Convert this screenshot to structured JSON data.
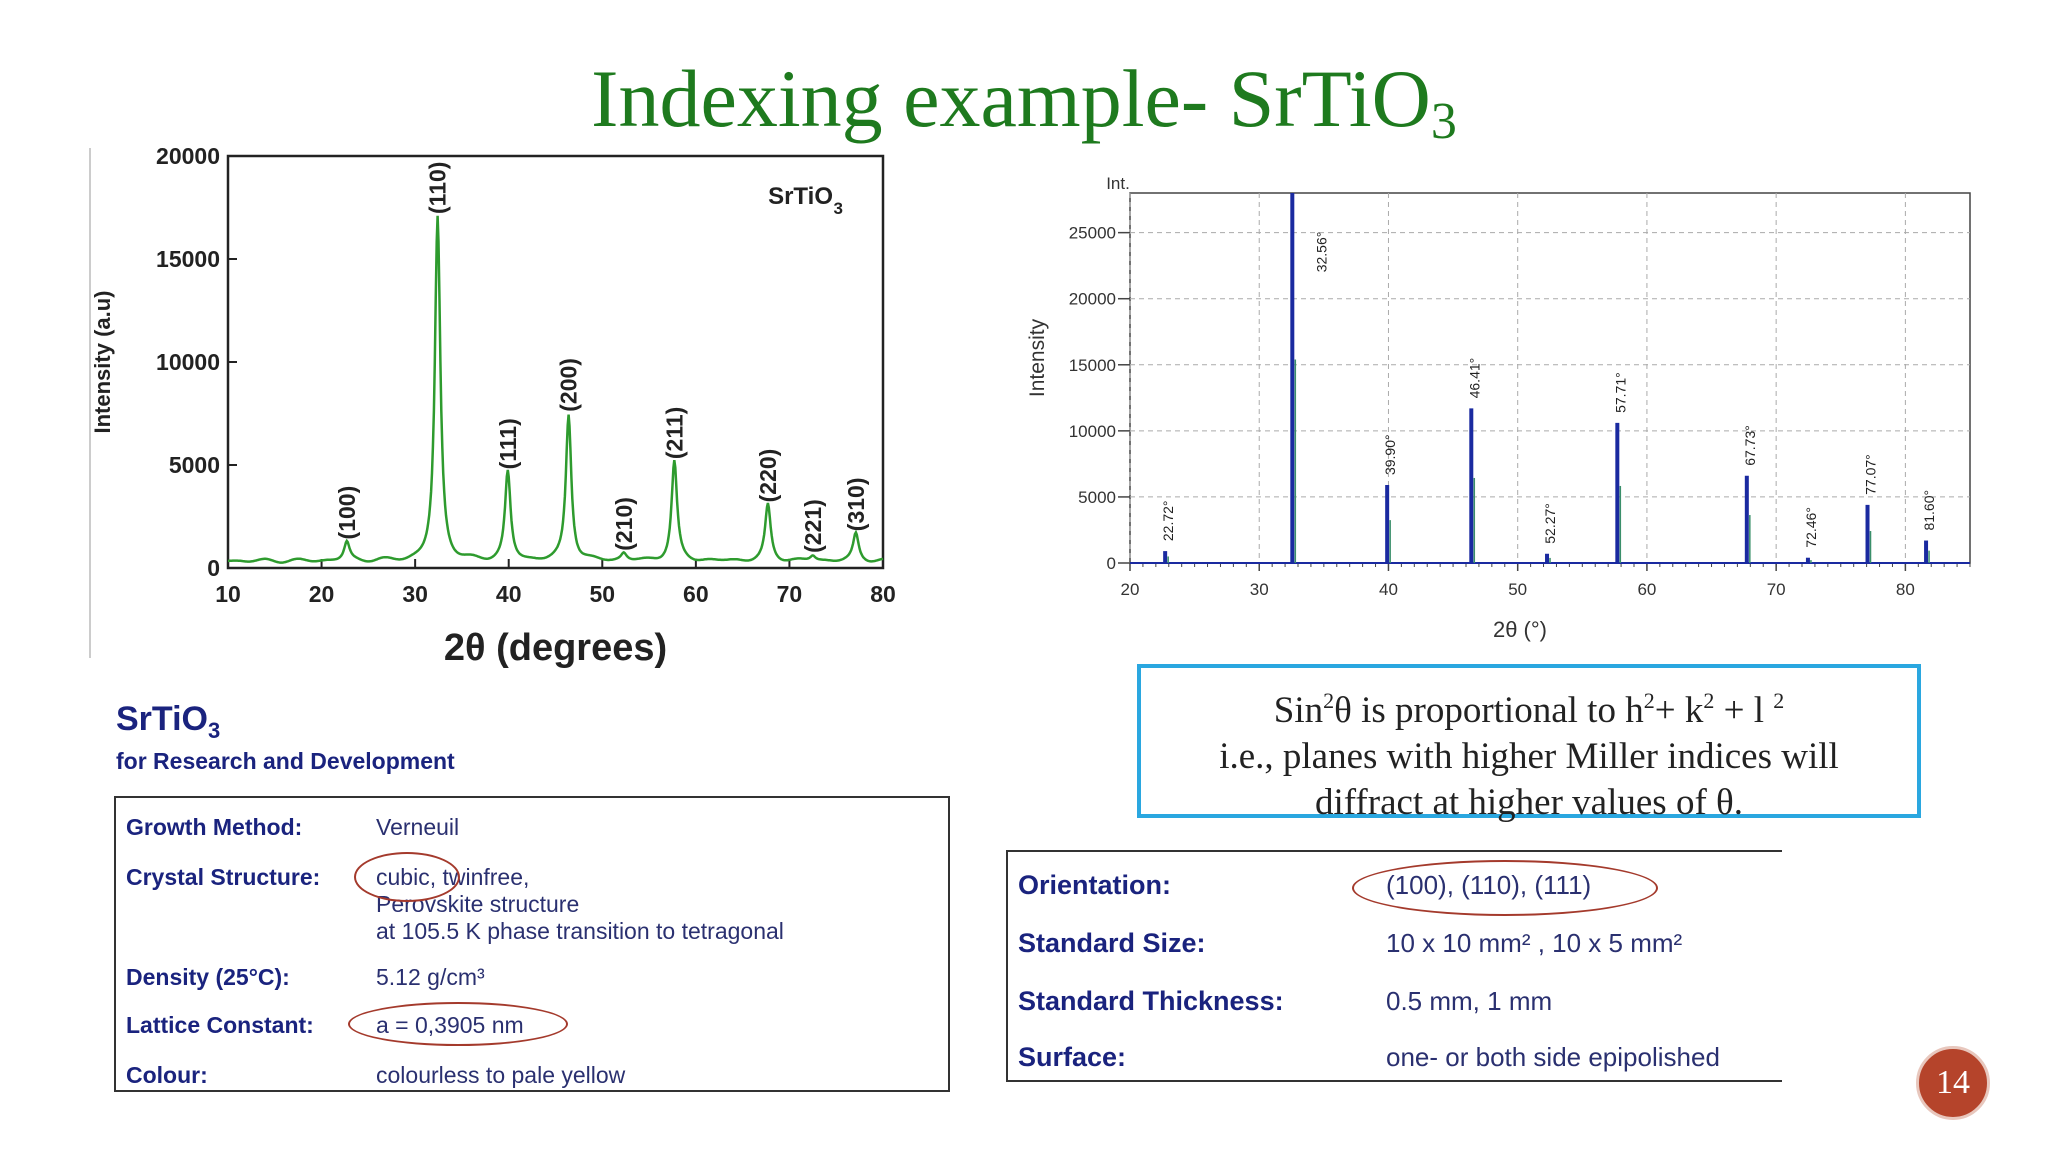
{
  "slide": {
    "title_main": "Indexing example- SrTiO",
    "title_sub": "3",
    "page_number": "14"
  },
  "chart_data": [
    {
      "type": "line",
      "title": "SrTiO",
      "title_sub": "3",
      "xlabel": "2θ (degrees)",
      "ylabel": "Intensity (a.u)",
      "xlim": [
        10,
        80
      ],
      "ylim": [
        0,
        20000
      ],
      "xticks": [
        10,
        20,
        30,
        40,
        50,
        60,
        70,
        80
      ],
      "yticks": [
        0,
        5000,
        10000,
        15000,
        20000
      ],
      "color": "#2e9b2e",
      "peaks": [
        {
          "x": 22.7,
          "y": 900,
          "label": "(100)"
        },
        {
          "x": 32.4,
          "y": 16700,
          "label": "(110)"
        },
        {
          "x": 39.9,
          "y": 4300,
          "label": "(111)"
        },
        {
          "x": 46.4,
          "y": 7100,
          "label": "(200)"
        },
        {
          "x": 52.3,
          "y": 350,
          "label": "(210)"
        },
        {
          "x": 57.7,
          "y": 4800,
          "label": "(211)"
        },
        {
          "x": 67.7,
          "y": 2700,
          "label": "(220)"
        },
        {
          "x": 72.5,
          "y": 250,
          "label": "(221)"
        },
        {
          "x": 77.1,
          "y": 1300,
          "label": "(310)"
        }
      ]
    },
    {
      "type": "bar",
      "title": "",
      "top_label": "Int.",
      "xlabel": "2θ (°)",
      "ylabel": "Intensity",
      "xlim": [
        20,
        85
      ],
      "ylim": [
        0,
        28000
      ],
      "xticks": [
        20,
        30,
        40,
        50,
        60,
        70,
        80
      ],
      "yticks": [
        0,
        5000,
        10000,
        15000,
        20000,
        25000
      ],
      "grid": true,
      "color": "#1a2aa0",
      "peaks": [
        {
          "x": 22.72,
          "y": 900,
          "label": "22.72°"
        },
        {
          "x": 32.56,
          "y": 28000,
          "label": "32.56°"
        },
        {
          "x": 39.9,
          "y": 5900,
          "label": "39.90°"
        },
        {
          "x": 46.41,
          "y": 11700,
          "label": "46.41°"
        },
        {
          "x": 52.27,
          "y": 700,
          "label": "52.27°"
        },
        {
          "x": 57.71,
          "y": 10600,
          "label": "57.71°"
        },
        {
          "x": 67.73,
          "y": 6600,
          "label": "67.73°"
        },
        {
          "x": 72.46,
          "y": 400,
          "label": "72.46°"
        },
        {
          "x": 77.07,
          "y": 4400,
          "label": "77.07°"
        },
        {
          "x": 81.6,
          "y": 1700,
          "label": "81.60°"
        }
      ]
    }
  ],
  "note": {
    "line1_a": "Sin",
    "line1_sup1": "2",
    "line1_b": "θ is proportional to h",
    "line1_sup2": "2",
    "line1_c": "+ k",
    "line1_sup3": "2",
    "line1_d": " + l ",
    "line1_sup4": "2",
    "line2": "i.e., planes with higher Miller indices will",
    "line3": "diffract at higher values of θ."
  },
  "spec": {
    "heading": "SrTiO",
    "heading_sub": "3",
    "subheading": "for Research and Development",
    "rows": [
      {
        "label": "Growth Method:",
        "value": "Verneuil"
      },
      {
        "label": "Crystal Structure:",
        "value": "cubic, twinfree,",
        "value2": "Perovskite structure",
        "value3": "at 105.5 K phase transition to tetragonal"
      },
      {
        "label": "Density (25°C):",
        "value": "5.12 g/cm³"
      },
      {
        "label": "Lattice Constant:",
        "value": "a = 0,3905 nm"
      },
      {
        "label": "Colour:",
        "value": "colourless to pale yellow"
      }
    ]
  },
  "spec2": {
    "rows": [
      {
        "label": "Orientation:",
        "value": "(100), (110), (111)"
      },
      {
        "label": "Standard Size:",
        "value": "10 x 10 mm² , 10 x 5 mm²"
      },
      {
        "label": "Standard Thickness:",
        "value": "0.5 mm, 1 mm"
      },
      {
        "label": "Surface:",
        "value": "one- or both side epipolished"
      }
    ]
  }
}
